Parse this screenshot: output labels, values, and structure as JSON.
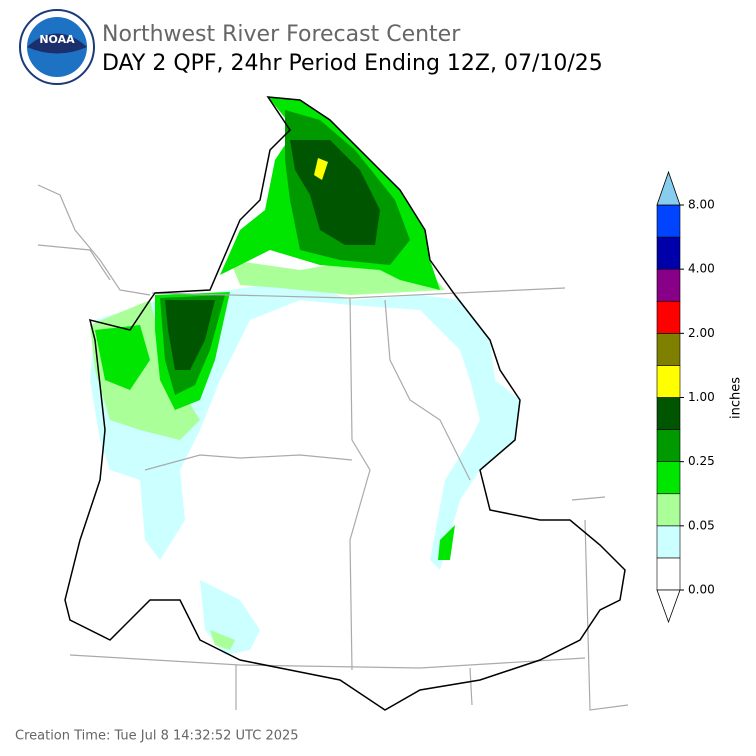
{
  "header": {
    "title": "Northwest River Forecast Center",
    "subtitle": "DAY 2 QPF, 24hr Period Ending 12Z, 07/10/25"
  },
  "logo": {
    "label": "NOAA"
  },
  "colorbar": {
    "label": "inches",
    "ticks": [
      "0.00",
      "0.05",
      "0.25",
      "1.00",
      "2.00",
      "4.00",
      "8.00"
    ],
    "colors": [
      "#ffffff",
      "#ccffff",
      "#aaff99",
      "#00e600",
      "#009900",
      "#005500",
      "#ffff00",
      "#808000",
      "#ff0000",
      "#880088",
      "#0000aa",
      "#0044ff"
    ],
    "extend_colors": [
      "#ffffff",
      "#88ccee"
    ]
  },
  "footer": "Creation Time: Tue Jul 8 14:32:52 UTC 2025"
}
